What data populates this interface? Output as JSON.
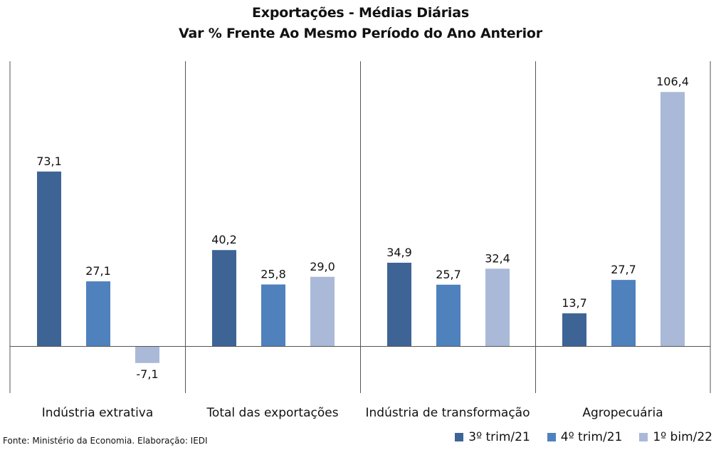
{
  "title": "Exportações - Médias Diárias",
  "subtitle": "Var % Frente Ao Mesmo Período do Ano Anterior",
  "source": "Fonte: Ministério da Economia. Elaboração: IEDI",
  "colors": [
    "#3e6496",
    "#4f81bd",
    "#aab9d8"
  ],
  "chart_data": {
    "type": "bar",
    "categories": [
      "Indústria extrativa",
      "Total das exportações",
      "Indústria de transformação",
      "Agropecuária"
    ],
    "series": [
      {
        "name": "3º trim/21",
        "values": [
          73.1,
          40.2,
          34.9,
          13.7
        ]
      },
      {
        "name": "4º trim/21",
        "values": [
          27.1,
          25.8,
          25.7,
          27.7
        ]
      },
      {
        "name": "1º bim/22",
        "values": [
          -7.1,
          29.0,
          32.4,
          106.4
        ]
      }
    ],
    "value_labels": [
      [
        "73,1",
        "40,2",
        "34,9",
        "13,7"
      ],
      [
        "27,1",
        "25,8",
        "25,7",
        "27,7"
      ],
      [
        "-7,1",
        "29,0",
        "32,4",
        "106,4"
      ]
    ],
    "ylim": [
      -20,
      120
    ],
    "grid": false,
    "legend_position": "bottom-right"
  }
}
